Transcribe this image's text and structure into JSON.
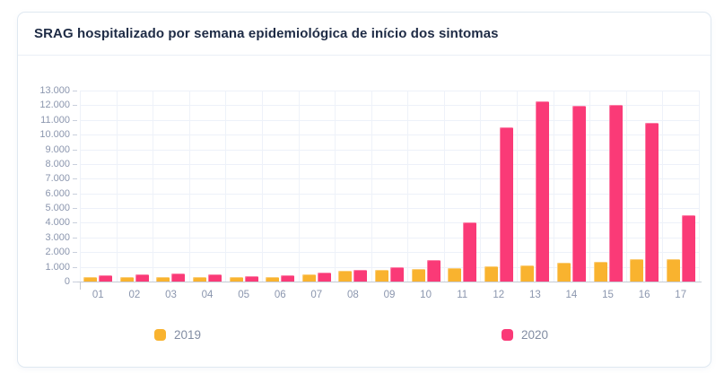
{
  "card": {
    "title": "SRAG hospitalizado por semana epidemiológica de início dos sintomas"
  },
  "chart_data": {
    "type": "bar",
    "title": "SRAG hospitalizado por semana epidemiológica de início dos sintomas",
    "xlabel": "",
    "ylabel": "",
    "categories": [
      "01",
      "02",
      "03",
      "04",
      "05",
      "06",
      "07",
      "08",
      "09",
      "10",
      "11",
      "12",
      "13",
      "14",
      "15",
      "16",
      "17"
    ],
    "series": [
      {
        "name": "2019",
        "color": "#f9b32f",
        "values": [
          300,
          280,
          280,
          290,
          280,
          300,
          490,
          710,
          770,
          840,
          900,
          1040,
          1100,
          1300,
          1330,
          1510,
          1550
        ]
      },
      {
        "name": "2020",
        "color": "#fa3a77",
        "values": [
          430,
          470,
          520,
          480,
          390,
          450,
          610,
          820,
          950,
          1460,
          4050,
          10500,
          12250,
          11950,
          12050,
          10800,
          4500
        ]
      }
    ],
    "ylim": [
      0,
      13000
    ],
    "y_tick_step": 1000,
    "y_ticks": [
      "0",
      "1.000",
      "2.000",
      "3.000",
      "4.000",
      "5.000",
      "6.000",
      "7.000",
      "8.000",
      "9.000",
      "10.000",
      "11.000",
      "12.000",
      "13.000"
    ],
    "grid": true,
    "legend_position": "bottom"
  },
  "colors": {
    "title_text": "#1e2b45",
    "axis_label_text": "#8b96ae",
    "legend_text": "#828da3",
    "gridline": "#edf1f9",
    "axis_line": "#c5cad5",
    "card_border": "#dfe8f1"
  }
}
